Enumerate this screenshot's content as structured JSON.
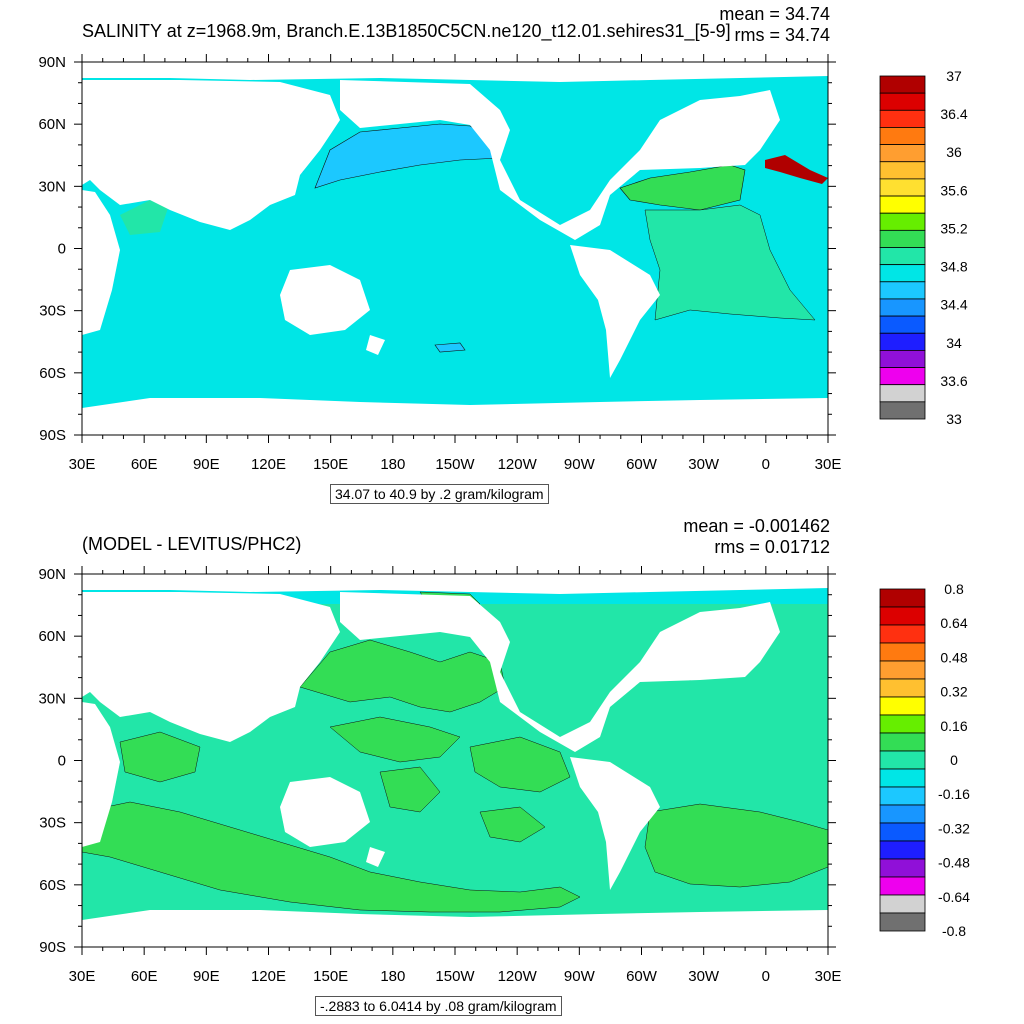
{
  "top": {
    "title": "SALINITY at z=1968.9m, Branch.E.13B1850C5CN.ne120_t12.01.sehires31_[5-9]",
    "mean": "mean = 34.74",
    "rms": "rms = 34.74",
    "info": "34.07 to 40.9 by .2 gram/kilogram",
    "colorbar_labels": [
      "37",
      "36.4",
      "36",
      "35.6",
      "35.2",
      "34.8",
      "34.4",
      "34",
      "33.6",
      "33"
    ],
    "colorbar_colors": [
      "#b00000",
      "#dc0000",
      "#ff3010",
      "#ff7a10",
      "#ff9e30",
      "#ffc030",
      "#ffe030",
      "#ffff00",
      "#66ee00",
      "#33dd55",
      "#22e6a8",
      "#00e6e6",
      "#1cc8ff",
      "#1896ff",
      "#0a5aff",
      "#1e1eff",
      "#9010d8",
      "#ee00ee",
      "#d2d2d2",
      "#707070"
    ]
  },
  "bottom": {
    "title": "(MODEL - LEVITUS/PHC2)",
    "mean": "mean = -0.001462",
    "rms": "rms = 0.01712",
    "info": "-.2883 to 6.0414 by .08 gram/kilogram",
    "colorbar_labels": [
      "0.8",
      "0.64",
      "0.48",
      "0.32",
      "0.16",
      "0",
      "-0.16",
      "-0.32",
      "-0.48",
      "-0.64",
      "-0.8"
    ],
    "colorbar_colors": [
      "#b00000",
      "#dc0000",
      "#ff3010",
      "#ff7a10",
      "#ff9e30",
      "#ffc030",
      "#ffff00",
      "#66ee00",
      "#33dd55",
      "#22e6a8",
      "#00e6e6",
      "#1cc8ff",
      "#1896ff",
      "#0a5aff",
      "#1e1eff",
      "#9010d8",
      "#ee00ee",
      "#d2d2d2",
      "#707070"
    ]
  },
  "axes": {
    "lon_labels": [
      "30E",
      "60E",
      "90E",
      "120E",
      "150E",
      "180",
      "150W",
      "120W",
      "90W",
      "60W",
      "30W",
      "0",
      "30E"
    ],
    "lat_labels": [
      "90N",
      "60N",
      "30N",
      "0",
      "30S",
      "60S",
      "90S"
    ]
  },
  "colors": {
    "ocean_top": "#00e6e6",
    "ocean_bottom_neg": "#22e6a8",
    "ocean_bottom_pos": "#33dd55",
    "land": "#ffffff"
  }
}
